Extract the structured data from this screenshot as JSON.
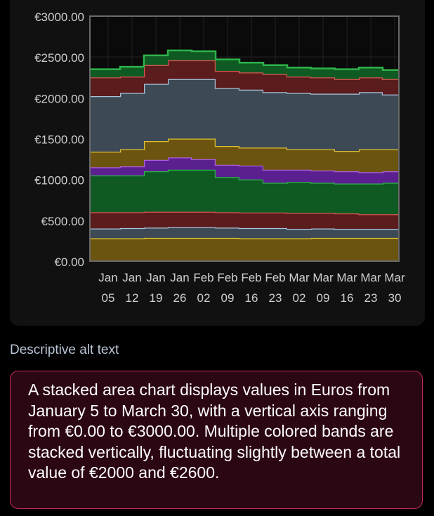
{
  "chart_data": {
    "type": "area",
    "stacked": true,
    "y_ticks": [
      "€0.00",
      "€500.00",
      "€1000.00",
      "€1500.00",
      "€2000.00",
      "€2500.00",
      "€3000.00"
    ],
    "ylim": [
      0,
      3000
    ],
    "x_ticks": [
      {
        "month": "Jan",
        "day": "05"
      },
      {
        "month": "Jan",
        "day": "12"
      },
      {
        "month": "Jan",
        "day": "19"
      },
      {
        "month": "Jan",
        "day": "26"
      },
      {
        "month": "Feb",
        "day": "02"
      },
      {
        "month": "Feb",
        "day": "09"
      },
      {
        "month": "Feb",
        "day": "16"
      },
      {
        "month": "Feb",
        "day": "23"
      },
      {
        "month": "Mar",
        "day": "02"
      },
      {
        "month": "Mar",
        "day": "09"
      },
      {
        "month": "Mar",
        "day": "16"
      },
      {
        "month": "Mar",
        "day": "23"
      },
      {
        "month": "Mar",
        "day": "30"
      }
    ],
    "x": [
      "Jan 05",
      "Jan 12",
      "Jan 19",
      "Jan 26",
      "Feb 02",
      "Feb 09",
      "Feb 16",
      "Feb 23",
      "Mar 02",
      "Mar 09",
      "Mar 16",
      "Mar 23",
      "Mar 30"
    ],
    "grid": true,
    "series": [
      {
        "color": "#e0c030",
        "fill": "#6b5410",
        "values": [
          280,
          280,
          285,
          285,
          285,
          285,
          280,
          280,
          280,
          285,
          285,
          285,
          285
        ]
      },
      {
        "color": "#a9c4dc",
        "fill": "#3d4a55",
        "values": [
          120,
          125,
          125,
          130,
          130,
          125,
          125,
          125,
          115,
          115,
          110,
          110,
          110
        ]
      },
      {
        "color": "#d9534f",
        "fill": "#5a1c1c",
        "values": [
          200,
          195,
          195,
          190,
          190,
          190,
          190,
          190,
          195,
          190,
          190,
          180,
          180
        ]
      },
      {
        "color": "#2eb34a",
        "fill": "#0f5a23",
        "values": [
          450,
          450,
          495,
          515,
          515,
          430,
          405,
          365,
          380,
          370,
          365,
          375,
          385
        ]
      },
      {
        "color": "#b05ce0",
        "fill": "#5a2090",
        "values": [
          100,
          110,
          140,
          150,
          130,
          150,
          170,
          160,
          150,
          150,
          150,
          140,
          140
        ]
      },
      {
        "color": "#e0c030",
        "fill": "#6b5410",
        "values": [
          190,
          210,
          230,
          230,
          250,
          230,
          220,
          270,
          250,
          260,
          250,
          280,
          270
        ]
      },
      {
        "color": "#a9c4dc",
        "fill": "#3d4a55",
        "values": [
          680,
          690,
          700,
          730,
          730,
          710,
          710,
          680,
          690,
          680,
          700,
          700,
          670
        ]
      },
      {
        "color": "#d9534f",
        "fill": "#5a1c1c",
        "values": [
          230,
          200,
          230,
          230,
          230,
          210,
          210,
          220,
          200,
          200,
          180,
          180,
          190
        ]
      },
      {
        "color": "#2eb34a",
        "fill": "#0f5a23",
        "values": [
          100,
          120,
          120,
          120,
          110,
          140,
          120,
          110,
          110,
          110,
          120,
          120,
          110
        ]
      }
    ]
  },
  "alt_section": {
    "heading": "Descriptive alt text",
    "text": "A stacked area chart displays values in Euros from January 5 to March 30, with a vertical axis ranging from €0.00 to €3000.00. Multiple colored bands are stacked vertically, fluctuating slightly between a total value of €2000 and €2600."
  }
}
